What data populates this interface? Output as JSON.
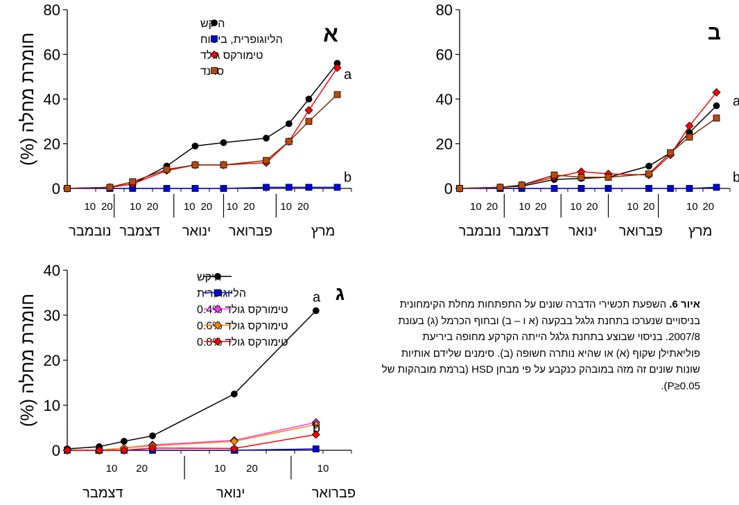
{
  "chart_data": [
    {
      "type": "line",
      "panel_label": "א",
      "ylabel": "חומרת מחלה (%)",
      "ylim": [
        0,
        80
      ],
      "yticks": [
        0,
        20,
        40,
        60,
        80
      ],
      "xlim": [
        0,
        10
      ],
      "x_tick_labels": [
        "10",
        "20",
        "10",
        "20",
        "10",
        "20",
        "10",
        "20",
        "10",
        "20"
      ],
      "months": [
        "נובמבר",
        "דצמבר",
        "ינואר",
        "פברואר",
        "מרץ"
      ],
      "annotations": [
        {
          "text": "a",
          "x": 9.8,
          "y": 49
        },
        {
          "text": "b",
          "x": 9.8,
          "y": 3
        }
      ],
      "x": [
        0,
        1.5,
        2.3,
        3.5,
        4.5,
        5.5,
        7,
        7.8,
        8.5,
        9.5
      ],
      "series": [
        {
          "name": "היקש",
          "color": "#000000",
          "marker": "circle",
          "values": [
            0,
            0.5,
            2,
            10,
            19,
            20.5,
            22.5,
            29,
            40,
            56
          ]
        },
        {
          "name": "הליוגופרית, ביטוח",
          "color": "#0000dd",
          "marker": "square",
          "values": [
            0,
            0,
            0,
            0,
            0,
            0,
            0.5,
            0.5,
            0.5,
            0.5
          ]
        },
        {
          "name": "טימורקס גולד",
          "color": "#ff0000",
          "marker": "diamond",
          "values": [
            0,
            0.5,
            2,
            8,
            10.5,
            10.5,
            11.5,
            21,
            35,
            54
          ]
        },
        {
          "name": "סרנד",
          "color": "#b84a0c",
          "marker": "square",
          "values": [
            0,
            0.5,
            3,
            8.5,
            10.5,
            10.5,
            12.5,
            21,
            30,
            42
          ]
        }
      ]
    },
    {
      "type": "line",
      "panel_label": "ב",
      "ylabel": "",
      "ylim": [
        0,
        80
      ],
      "yticks": [
        0,
        20,
        40,
        60,
        80
      ],
      "xlim": [
        0,
        10
      ],
      "x_tick_labels": [
        "10",
        "20",
        "10",
        "20",
        "10",
        "20",
        "10",
        "20",
        "10",
        "20"
      ],
      "months": [
        "נובמבר",
        "דצמבר",
        "ינואר",
        "פברואר",
        "מרץ"
      ],
      "annotations": [
        {
          "text": "a",
          "x": 9.8,
          "y": 37
        },
        {
          "text": "b",
          "x": 9.8,
          "y": 3
        }
      ],
      "x": [
        0,
        1.5,
        2.3,
        3.5,
        4.5,
        5.5,
        7,
        7.8,
        8.5,
        9.5
      ],
      "series": [
        {
          "name": "היקש",
          "color": "#000000",
          "marker": "circle",
          "values": [
            0,
            0.5,
            1,
            4,
            4.5,
            5,
            10,
            16,
            25,
            37
          ]
        },
        {
          "name": "הליוגופרית, ביטוח",
          "color": "#0000dd",
          "marker": "square",
          "values": [
            0,
            0,
            0,
            0,
            0,
            0,
            0,
            0,
            0,
            0.5
          ]
        },
        {
          "name": "טימורקס גולד",
          "color": "#ff0000",
          "marker": "diamond",
          "values": [
            0,
            0.5,
            1.5,
            5,
            7.5,
            6.5,
            6,
            15,
            28,
            43
          ]
        },
        {
          "name": "סרנד",
          "color": "#b84a0c",
          "marker": "square",
          "values": [
            0,
            0.5,
            1.5,
            6,
            5,
            5,
            6.5,
            16,
            23,
            31.5
          ]
        }
      ]
    },
    {
      "type": "line",
      "panel_label": "ג",
      "ylabel": "חומרת מחלה (%)",
      "ylim": [
        0,
        40
      ],
      "yticks": [
        0,
        10,
        20,
        30,
        40
      ],
      "xlim": [
        0,
        8
      ],
      "x_tick_labels": [
        "10",
        "20",
        "10",
        "20",
        "10"
      ],
      "months": [
        "דצמבר",
        "ינואר",
        "פברואר"
      ],
      "annotations": [
        {
          "text": "a",
          "x": 7.3,
          "y": 33
        },
        {
          "text": "b",
          "x": 7.3,
          "y": 4
        }
      ],
      "x": [
        0,
        0.9,
        1.6,
        2.4,
        4.7,
        7
      ],
      "series": [
        {
          "name": "היקש",
          "color": "#000000",
          "marker": "circle",
          "values": [
            0.3,
            0.8,
            2,
            3.2,
            12.5,
            31
          ]
        },
        {
          "name": "הליוגופרית",
          "color": "#0000dd",
          "marker": "square",
          "values": [
            0,
            0,
            0,
            0,
            0,
            0.3
          ]
        },
        {
          "name": "טימורקס גולד 0.4%",
          "color": "#ff33ff",
          "marker": "diamond",
          "values": [
            0,
            0,
            0.5,
            1.2,
            2.2,
            6.2
          ]
        },
        {
          "name": "טימורקס גולד 0.6%",
          "color": "#ff8800",
          "marker": "diamond",
          "values": [
            0,
            0,
            0.5,
            1,
            2,
            5.7
          ]
        },
        {
          "name": "טימורקס גולד 0.8%",
          "color": "#ff0000",
          "marker": "diamond",
          "values": [
            0,
            0,
            0,
            0.5,
            0.4,
            3.5
          ]
        }
      ]
    }
  ],
  "caption": {
    "lead": "איור 6.",
    "text": " השפעת תכשירי הדברה שונים על התפתחות מחלת הקימחונית בניסויים שנערכו בתחנת גלגל בבקעה (א ו – ב) ובחוף הכרמל (ג) בעונת 2007/8. בניסוי שבוצע בתחנת גלגל הייתה הקרקע מחופה ביריעת פוליאתילן שקוף (א) או שהיא נותרה חשופה (ב). סימנים שלידם אותיות שונות שונים זה מזה במובהק כנקבע על פי מבחן HSD (ברמת מובהקות של P≥0.05)."
  }
}
